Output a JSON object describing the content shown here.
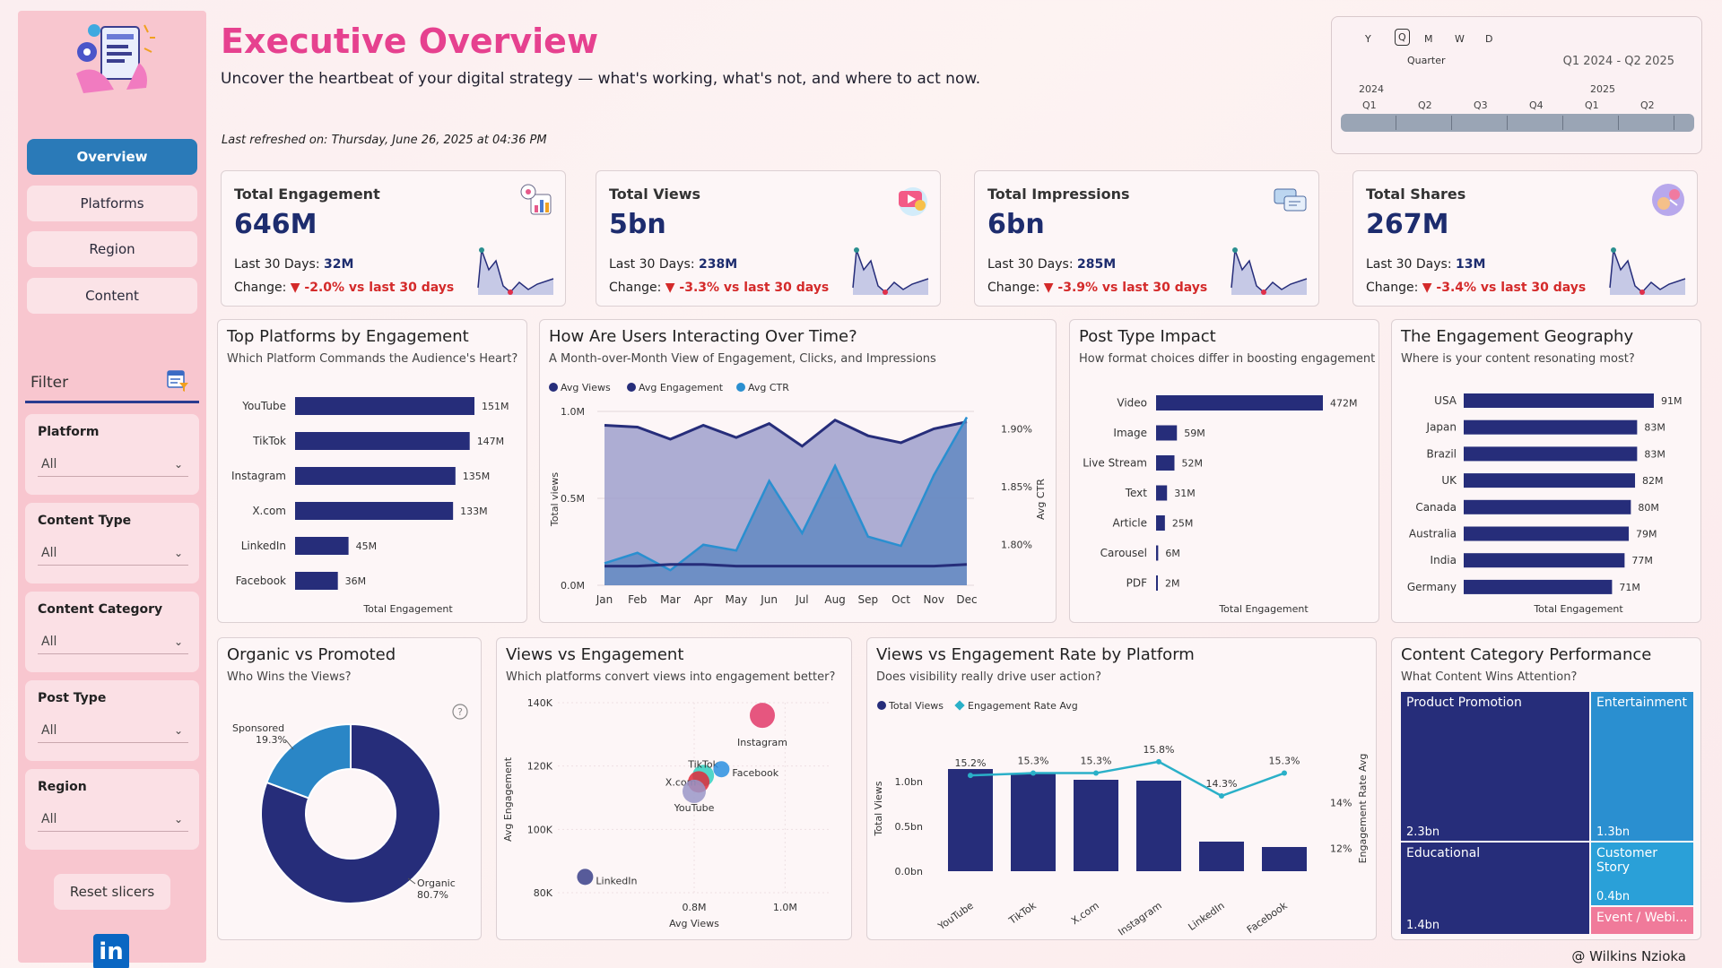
{
  "header": {
    "title": "Executive Overview",
    "subtitle": "Uncover the heartbeat of your digital strategy — what's working, what's not, and where to act now.",
    "refreshed": "Last refreshed on: Thursday, June 26, 2025 at 04:36 PM"
  },
  "sidebar": {
    "nav": [
      {
        "label": "Overview",
        "active": true
      },
      {
        "label": "Platforms",
        "active": false
      },
      {
        "label": "Region",
        "active": false
      },
      {
        "label": "Content",
        "active": false
      }
    ],
    "filter_title": "Filter",
    "slicers": [
      {
        "label": "Platform",
        "value": "All"
      },
      {
        "label": "Content Type",
        "value": "All"
      },
      {
        "label": "Content Category",
        "value": "All"
      },
      {
        "label": "Post Type",
        "value": "All"
      },
      {
        "label": "Region",
        "value": "All"
      }
    ],
    "reset_label": "Reset slicers",
    "linkedin_label": "in"
  },
  "timeline": {
    "levels": [
      "Y",
      "Q",
      "M",
      "W",
      "D"
    ],
    "selected_level": "Quarter",
    "range": "Q1 2024 - Q2 2025",
    "years": [
      "2024",
      "2025"
    ],
    "quarters": [
      "Q1",
      "Q2",
      "Q3",
      "Q4",
      "Q1",
      "Q2"
    ]
  },
  "kpis": [
    {
      "title": "Total Engagement",
      "value": "646M",
      "last30_label": "Last 30 Days:",
      "last30": "32M",
      "change_label": "Change:",
      "change": "▼ -2.0% vs last 30 days",
      "icon": "engagement-icon"
    },
    {
      "title": "Total Views",
      "value": "5bn",
      "last30_label": "Last 30 Days:",
      "last30": "238M",
      "change_label": "Change:",
      "change": "▼ -3.3% vs last 30 days",
      "icon": "play-icon"
    },
    {
      "title": "Total Impressions",
      "value": "6bn",
      "last30_label": "Last 30 Days:",
      "last30": "285M",
      "change_label": "Change:",
      "change": "▼ -3.9% vs last 30 days",
      "icon": "chat-icon"
    },
    {
      "title": "Total Shares",
      "value": "267M",
      "last30_label": "Last 30 Days:",
      "last30": "13M",
      "change_label": "Change:",
      "change": "▼ -3.4% vs last 30 days",
      "icon": "share-icon"
    }
  ],
  "cards": {
    "top_platforms": {
      "title": "Top Platforms by Engagement",
      "subtitle": "Which Platform Commands the Audience's Heart?",
      "xlabel": "Total Engagement"
    },
    "interaction": {
      "title": "How Are Users Interacting Over Time?",
      "subtitle": "A Month-over-Month View of Engagement, Clicks, and Impressions"
    },
    "post_type": {
      "title": "Post Type Impact",
      "subtitle": "How format choices differ in boosting engagement",
      "xlabel": "Total Engagement"
    },
    "geography": {
      "title": "The Engagement Geography",
      "subtitle": "Where is your content resonating most?",
      "xlabel": "Total Engagement"
    },
    "organic": {
      "title": "Organic vs Promoted",
      "subtitle": "Who Wins the Views?"
    },
    "views_eng": {
      "title": "Views vs Engagement",
      "subtitle": "Which platforms convert views into engagement better?"
    },
    "rate_platform": {
      "title": "Views vs Engagement Rate by Platform",
      "subtitle": "Does visibility really drive user action?"
    },
    "category": {
      "title": "Content Category Performance",
      "subtitle": "What Content Wins Attention?"
    }
  },
  "credit": "@ Wilkins Nzioka",
  "colors": {
    "navy": "#262d7a",
    "blue": "#2a8fd0",
    "pink": "#e6418f",
    "neg": "#d42a2a"
  },
  "chart_data": [
    {
      "id": "top_platforms",
      "type": "bar",
      "orientation": "horizontal",
      "categories": [
        "YouTube",
        "TikTok",
        "Instagram",
        "X.com",
        "LinkedIn",
        "Facebook"
      ],
      "values": [
        151,
        147,
        135,
        133,
        45,
        36
      ],
      "labels": [
        "151M",
        "147M",
        "135M",
        "133M",
        "45M",
        "36M"
      ],
      "xlabel": "Total Engagement"
    },
    {
      "id": "interaction",
      "type": "area",
      "x": [
        "Jan",
        "Feb",
        "Mar",
        "Apr",
        "May",
        "Jun",
        "Jul",
        "Aug",
        "Sep",
        "Oct",
        "Nov",
        "Dec"
      ],
      "series": [
        {
          "name": "Avg Views",
          "values": [
            0.92,
            0.91,
            0.84,
            0.92,
            0.85,
            0.93,
            0.8,
            0.95,
            0.86,
            0.82,
            0.9,
            0.94
          ]
        },
        {
          "name": "Avg Engagement",
          "values": [
            0.11,
            0.11,
            0.12,
            0.12,
            0.11,
            0.11,
            0.11,
            0.11,
            0.11,
            0.11,
            0.11,
            0.12
          ]
        },
        {
          "name": "Avg CTR",
          "values": [
            1.784,
            1.793,
            1.778,
            1.8,
            1.795,
            1.855,
            1.81,
            1.868,
            1.807,
            1.799,
            1.86,
            1.91
          ]
        }
      ],
      "ylabel": "Total views",
      "y2label": "Avg CTR",
      "yticks": [
        "0.0M",
        "0.5M",
        "1.0M"
      ],
      "y2ticks": [
        "1.80%",
        "1.85%",
        "1.90%"
      ],
      "ylim": [
        0,
        1.0
      ],
      "y2lim": [
        1.765,
        1.915
      ]
    },
    {
      "id": "post_type",
      "type": "bar",
      "orientation": "horizontal",
      "categories": [
        "Video",
        "Image",
        "Live Stream",
        "Text",
        "Article",
        "Carousel",
        "PDF"
      ],
      "values": [
        472,
        59,
        52,
        31,
        25,
        6,
        2
      ],
      "labels": [
        "472M",
        "59M",
        "52M",
        "31M",
        "25M",
        "6M",
        "2M"
      ],
      "xlabel": "Total Engagement"
    },
    {
      "id": "geography",
      "type": "bar",
      "orientation": "horizontal",
      "categories": [
        "USA",
        "Japan",
        "Brazil",
        "UK",
        "Canada",
        "Australia",
        "India",
        "Germany"
      ],
      "values": [
        91,
        83,
        83,
        82,
        80,
        79,
        77,
        71
      ],
      "labels": [
        "91M",
        "83M",
        "83M",
        "82M",
        "80M",
        "79M",
        "77M",
        "71M"
      ],
      "xlabel": "Total Engagement"
    },
    {
      "id": "organic",
      "type": "pie",
      "donut": true,
      "categories": [
        "Organic",
        "Sponsored"
      ],
      "values": [
        80.7,
        19.3
      ],
      "labels": [
        "Organic\n80.7%",
        "Sponsored\n19.3%"
      ]
    },
    {
      "id": "views_eng",
      "type": "scatter",
      "points": [
        {
          "name": "Instagram",
          "x": 0.95,
          "y": 136
        },
        {
          "name": "TikTok",
          "x": 0.82,
          "y": 117
        },
        {
          "name": "Facebook",
          "x": 0.86,
          "y": 119
        },
        {
          "name": "X.com",
          "x": 0.81,
          "y": 115
        },
        {
          "name": "YouTube",
          "x": 0.8,
          "y": 112
        },
        {
          "name": "LinkedIn",
          "x": 0.56,
          "y": 85
        }
      ],
      "xlabel": "Avg Views",
      "ylabel": "Avg Engagement",
      "xticks": [
        "0.8M",
        "1.0M"
      ],
      "yticks": [
        "80K",
        "100K",
        "120K",
        "140K"
      ],
      "xlim": [
        0.5,
        1.1
      ],
      "ylim": [
        80,
        140
      ]
    },
    {
      "id": "rate_platform",
      "type": "bar",
      "categories": [
        "YouTube",
        "TikTok",
        "X.com",
        "Instagram",
        "LinkedIn",
        "Facebook"
      ],
      "series": [
        {
          "name": "Total Views",
          "values": [
            1.14,
            1.09,
            1.02,
            1.01,
            0.33,
            0.27
          ]
        },
        {
          "name": "Engagement Rate Avg",
          "values": [
            15.2,
            15.3,
            15.3,
            15.8,
            14.3,
            15.3
          ]
        }
      ],
      "rate_labels": [
        "15.2%",
        "15.3%",
        "15.3%",
        "15.8%",
        "14.3%",
        "15.3%"
      ],
      "ylabel": "Total Views",
      "y2label": "Engagement Rate Avg",
      "yticks": [
        "0.0bn",
        "0.5bn",
        "1.0bn"
      ],
      "y2ticks": [
        "12%",
        "14%"
      ],
      "ylim": [
        0,
        1.4
      ],
      "y2lim": [
        11,
        16.5
      ]
    },
    {
      "id": "category",
      "type": "treemap",
      "items": [
        {
          "name": "Product Promotion",
          "value": "2.3bn"
        },
        {
          "name": "Entertainment",
          "value": "1.3bn"
        },
        {
          "name": "Educational",
          "value": "1.4bn"
        },
        {
          "name": "Customer Story",
          "value": "0.4bn"
        },
        {
          "name": "Event / Webi...",
          "value": ""
        }
      ]
    }
  ]
}
